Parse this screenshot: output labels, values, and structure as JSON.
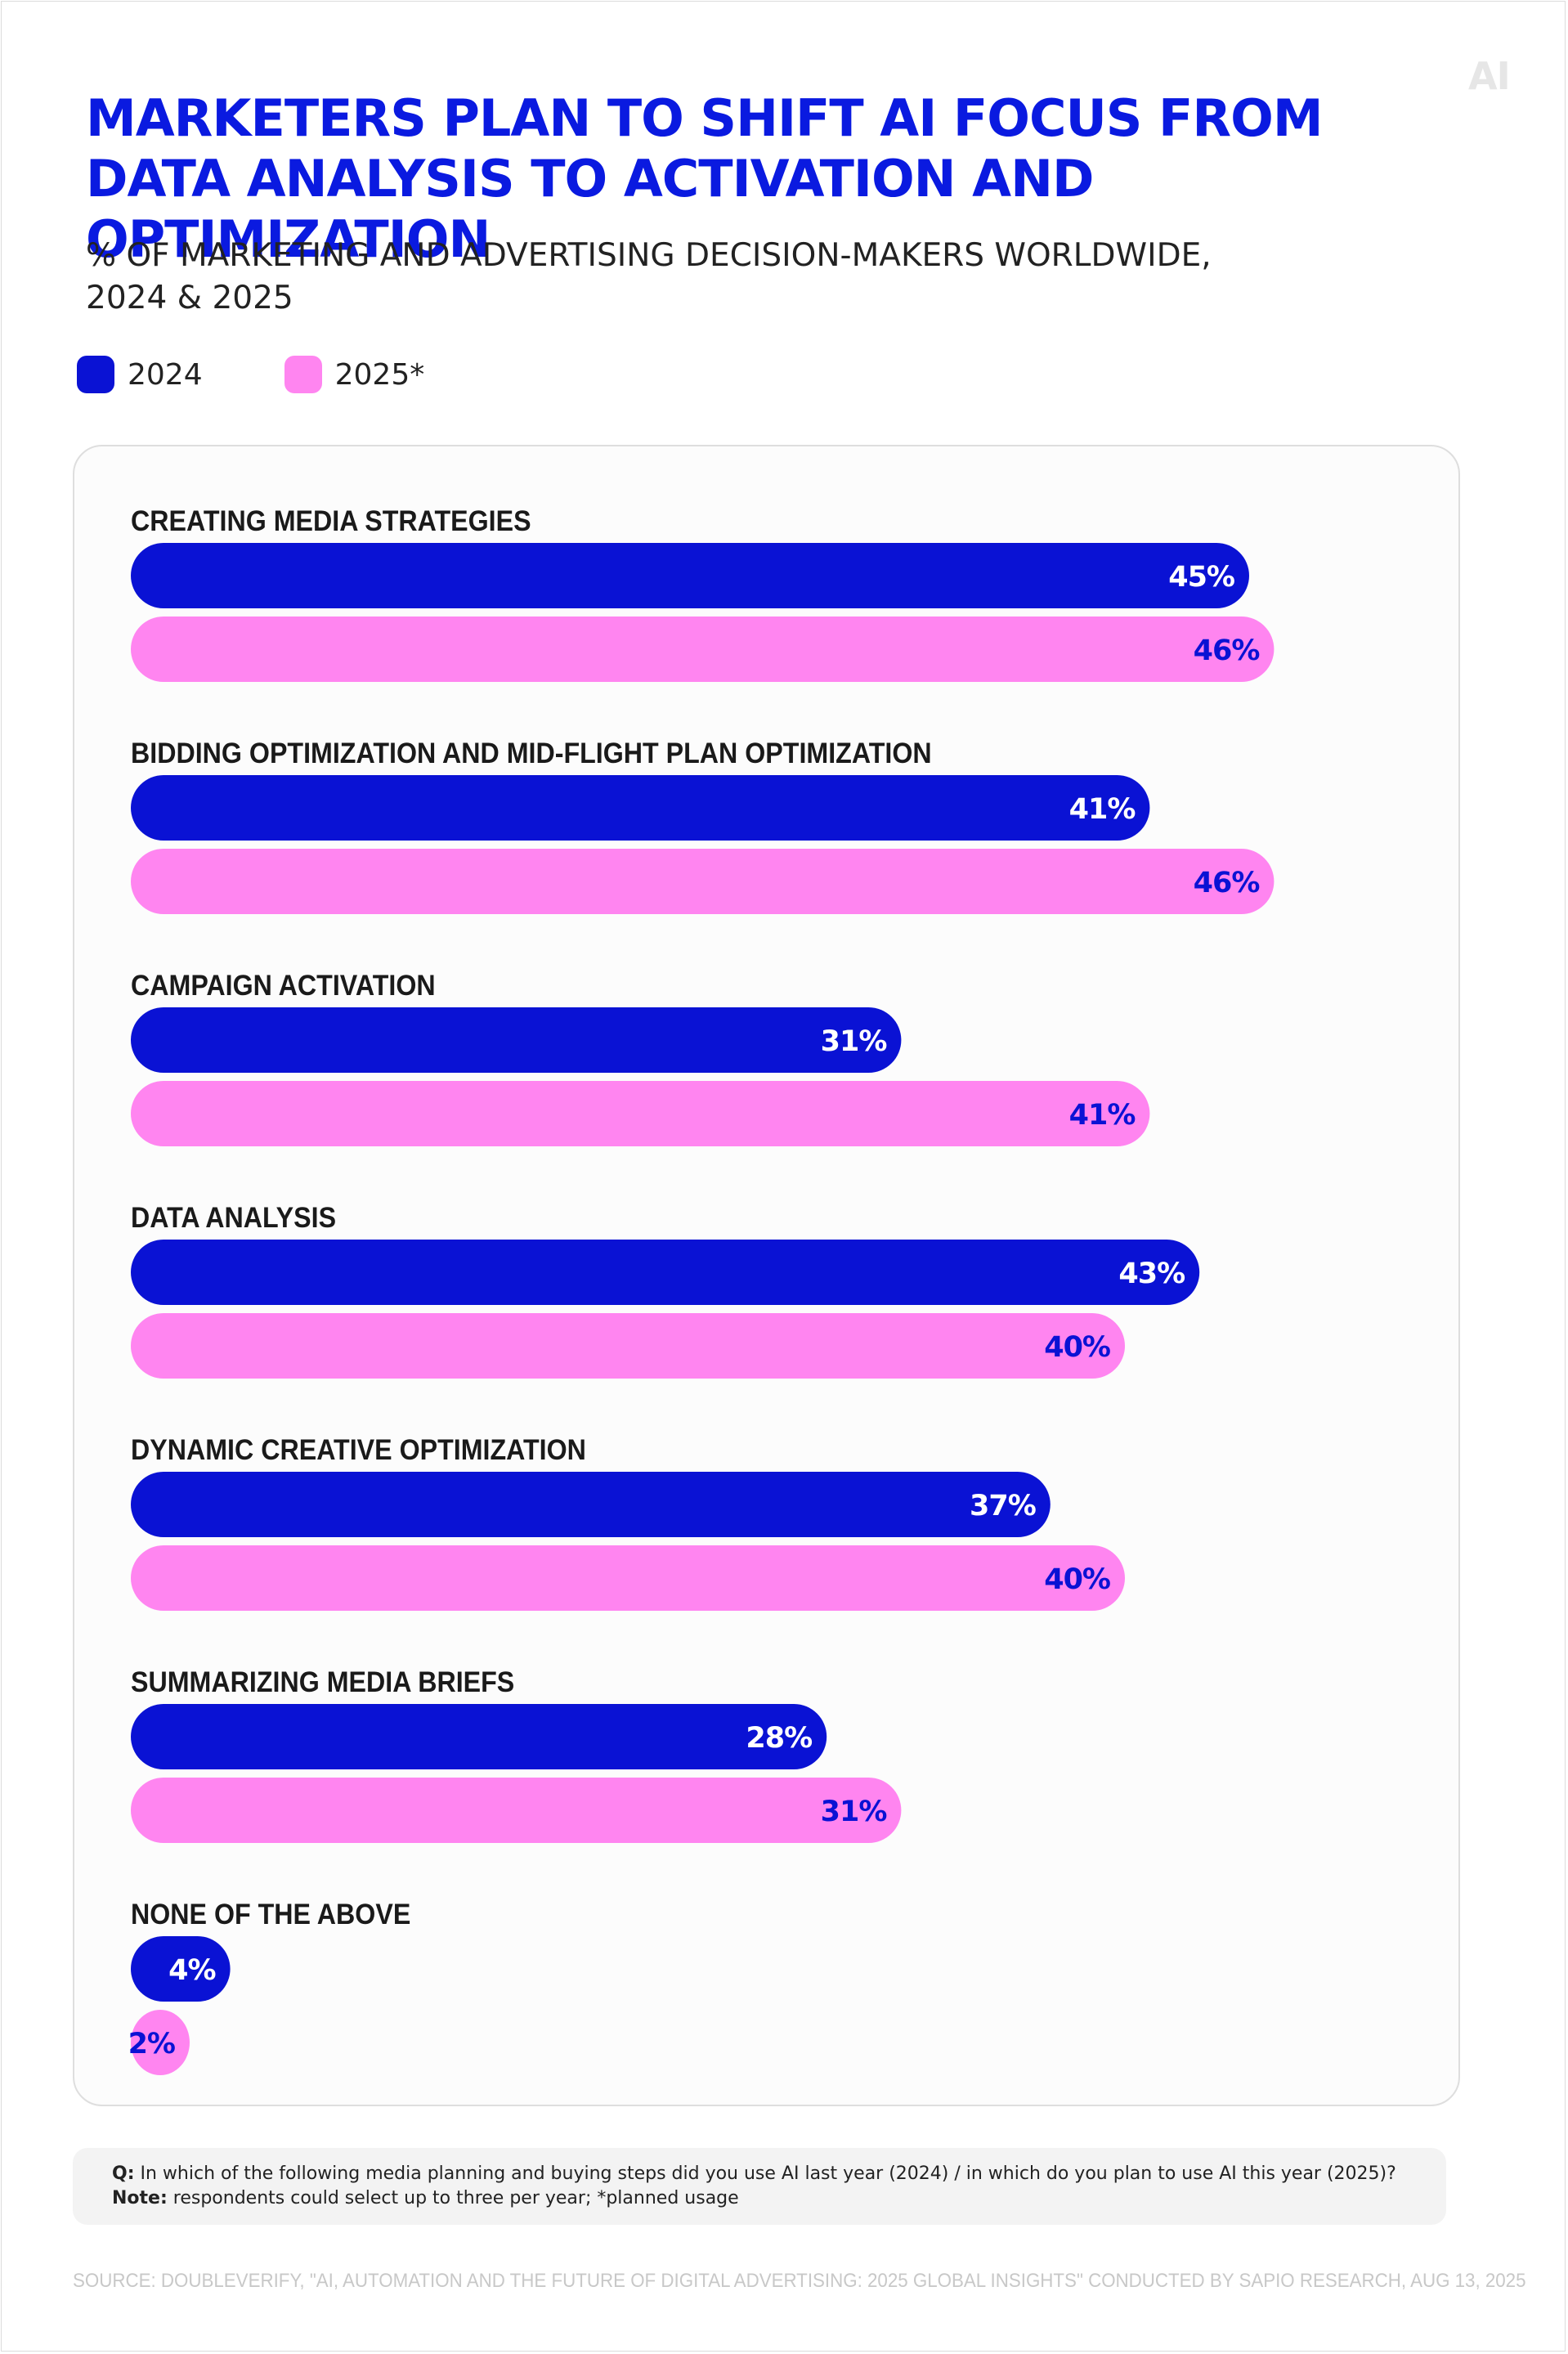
{
  "brand": {
    "logo_text": "AI",
    "color_2024": "#0a12d4",
    "color_2025": "#ff85f0",
    "value_text_2024": "#ffffff",
    "value_text_2025": "#0a12d4"
  },
  "legend": {
    "label_2024": "2024",
    "label_2025": "2025*"
  },
  "chart_data": {
    "type": "bar",
    "orientation": "horizontal",
    "title": "MARKETERS PLAN TO SHIFT AI FOCUS FROM DATA ANALYSIS TO ACTIVATION AND OPTIMIZATION",
    "subtitle": "% OF MARKETING AND ADVERTISING DECISION-MAKERS WORLDWIDE, 2024 & 2025",
    "categories": [
      "CREATING MEDIA STRATEGIES",
      "BIDDING OPTIMIZATION AND MID-FLIGHT PLAN OPTIMIZATION",
      "CAMPAIGN ACTIVATION",
      "DATA ANALYSIS",
      "DYNAMIC CREATIVE OPTIMIZATION",
      "SUMMARIZING MEDIA BRIEFS",
      "NONE OF THE ABOVE"
    ],
    "series": [
      {
        "name": "2024",
        "values": [
          45,
          41,
          31,
          43,
          37,
          28,
          4
        ]
      },
      {
        "name": "2025*",
        "values": [
          46,
          46,
          41,
          40,
          40,
          31,
          2
        ]
      }
    ],
    "value_suffix": "%",
    "legend_position": "top-left",
    "grid": false
  },
  "footnote": {
    "q_label": "Q:",
    "q_text": "In which of the following media planning and buying steps did you use AI last year (2024) / in which do you plan to use AI this year (2025)?",
    "note_label": "Note:",
    "note_text": "respondents could select up to three per year; *planned usage"
  },
  "source": "SOURCE: DOUBLEVERIFY, \"AI, AUTOMATION AND THE FUTURE OF DIGITAL ADVERTISING: 2025 GLOBAL INSIGHTS\" CONDUCTED BY SAPIO RESEARCH, AUG 13, 2025"
}
